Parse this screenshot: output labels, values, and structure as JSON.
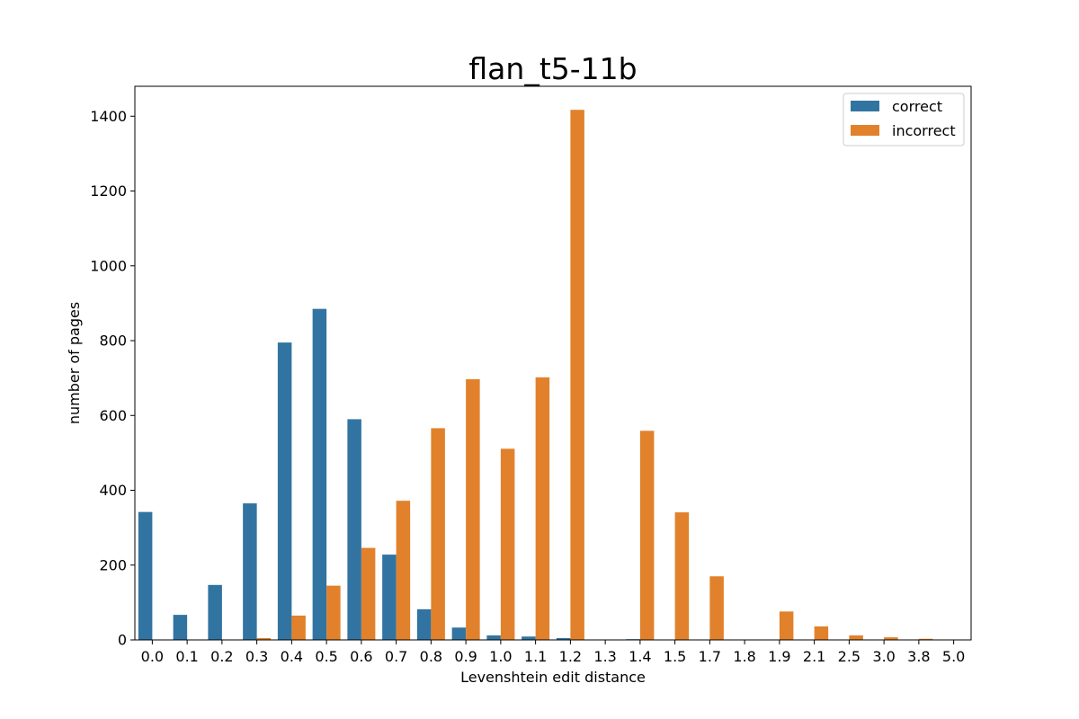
{
  "chart_data": {
    "type": "bar",
    "title": "flan_t5-11b",
    "xlabel": "Levenshtein edit distance",
    "ylabel": "number of pages",
    "ylim": [
      0,
      1480
    ],
    "yticks": [
      0,
      200,
      400,
      600,
      800,
      1000,
      1200,
      1400
    ],
    "categories": [
      "0.0",
      "0.1",
      "0.2",
      "0.3",
      "0.4",
      "0.5",
      "0.6",
      "0.7",
      "0.8",
      "0.9",
      "1.0",
      "1.1",
      "1.2",
      "1.3",
      "1.4",
      "1.5",
      "1.7",
      "1.8",
      "1.9",
      "2.1",
      "2.5",
      "3.0",
      "3.8",
      "5.0"
    ],
    "series": [
      {
        "name": "correct",
        "color": "#3274a1",
        "values": [
          342,
          67,
          147,
          365,
          795,
          885,
          590,
          228,
          82,
          33,
          12,
          9,
          5,
          0,
          2,
          0,
          0,
          0,
          0,
          0,
          0,
          0,
          0,
          0
        ]
      },
      {
        "name": "incorrect",
        "color": "#e1812c",
        "values": [
          0,
          0,
          0,
          5,
          65,
          145,
          246,
          372,
          566,
          697,
          511,
          702,
          1417,
          0,
          559,
          341,
          170,
          0,
          76,
          36,
          12,
          7,
          3,
          0
        ]
      }
    ],
    "legend_position": "top-right",
    "grid": false
  }
}
